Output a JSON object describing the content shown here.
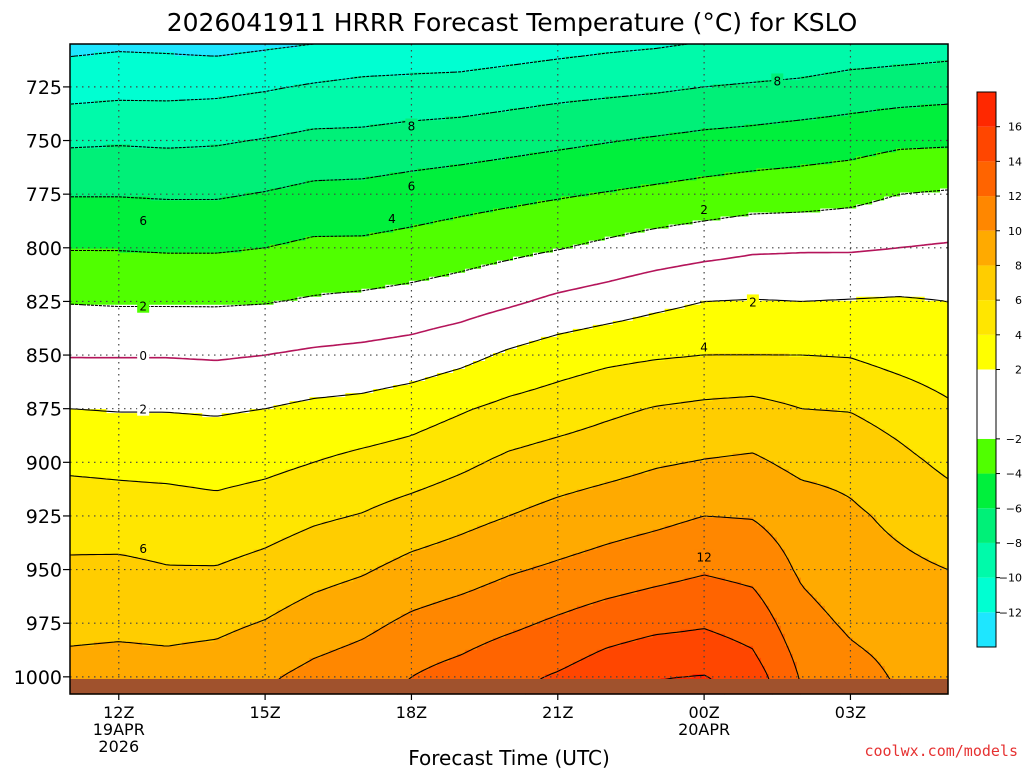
{
  "chart_data": {
    "type": "filled-contour",
    "title": "2026041911 HRRR Forecast Temperature (°C) for KSLO",
    "xlabel": "Forecast Time (UTC)",
    "credit": "coolwx.com/models",
    "x_ticks": [
      {
        "t": 0,
        "lines": [
          "12Z",
          "19APR",
          "2026"
        ]
      },
      {
        "t": 3,
        "lines": [
          "15Z"
        ]
      },
      {
        "t": 6,
        "lines": [
          "18Z"
        ]
      },
      {
        "t": 9,
        "lines": [
          "21Z"
        ]
      },
      {
        "t": 12,
        "lines": [
          "00Z",
          "20APR"
        ]
      },
      {
        "t": 15,
        "lines": [
          "03Z"
        ]
      }
    ],
    "x_range_hours": [
      -1,
      17
    ],
    "y_range_hPa": [
      1008,
      705
    ],
    "y_ticks": [
      725,
      750,
      775,
      800,
      825,
      850,
      875,
      900,
      925,
      950,
      975,
      1000
    ],
    "surface_pressure_hPa": 1001,
    "colorbar": {
      "ticks": [
        -12,
        -10,
        -8,
        -6,
        -4,
        -2,
        2,
        4,
        6,
        8,
        10,
        12,
        14,
        16
      ],
      "bands": [
        {
          "from": -14,
          "to": -12,
          "color": "#1ee6ff"
        },
        {
          "from": -12,
          "to": -10,
          "color": "#00ffd2"
        },
        {
          "from": -10,
          "to": -8,
          "color": "#00faaa"
        },
        {
          "from": -8,
          "to": -6,
          "color": "#00f078"
        },
        {
          "from": -6,
          "to": -4,
          "color": "#00f03c"
        },
        {
          "from": -4,
          "to": -2,
          "color": "#50ff00"
        },
        {
          "from": -2,
          "to": 2,
          "color": "#ffffff"
        },
        {
          "from": 2,
          "to": 4,
          "color": "#ffff00"
        },
        {
          "from": 4,
          "to": 6,
          "color": "#ffe600"
        },
        {
          "from": 6,
          "to": 8,
          "color": "#ffcd00"
        },
        {
          "from": 8,
          "to": 10,
          "color": "#ffaa00"
        },
        {
          "from": 10,
          "to": 12,
          "color": "#ff8700"
        },
        {
          "from": 12,
          "to": 14,
          "color": "#ff6400"
        },
        {
          "from": 14,
          "to": 16,
          "color": "#ff4600"
        },
        {
          "from": 16,
          "to": 18,
          "color": "#ff2800"
        }
      ]
    },
    "profile_x_hours": [
      -1,
      0,
      1,
      2,
      3,
      4,
      5,
      6,
      7,
      8,
      9,
      10,
      11,
      12,
      13,
      14,
      15,
      16,
      17
    ],
    "temperature_profiles": {
      "pressure_levels_hPa": [
        1008,
        1000,
        990,
        975,
        950,
        925,
        900,
        875,
        850,
        825,
        800,
        775,
        750,
        725,
        705
      ],
      "celsius": [
        [
          9.0,
          8.7,
          8.2,
          7.5,
          6.3,
          5.2,
          3.6,
          2.0,
          -0.1,
          -2.1,
          -4.1,
          -6.1,
          -8.3,
          -10.8,
          -12.5
        ],
        [
          9.2,
          8.9,
          8.3,
          7.6,
          6.4,
          5.0,
          3.5,
          1.9,
          -0.1,
          -2.2,
          -4.1,
          -6.1,
          -8.2,
          -10.6,
          -12.3
        ],
        [
          9.0,
          8.7,
          8.2,
          7.5,
          6.1,
          4.9,
          3.4,
          1.9,
          -0.1,
          -2.2,
          -4.2,
          -6.2,
          -8.3,
          -10.6,
          -12.4
        ],
        [
          9.5,
          9.0,
          8.4,
          7.6,
          6.1,
          4.7,
          3.2,
          1.8,
          -0.2,
          -2.2,
          -4.2,
          -6.2,
          -8.2,
          -10.5,
          -12.6
        ],
        [
          10.0,
          9.7,
          9.0,
          8.1,
          6.6,
          5.1,
          3.5,
          2.0,
          0.0,
          -2.1,
          -4.0,
          -5.9,
          -7.9,
          -10.2,
          -12.3
        ],
        [
          10.9,
          10.6,
          9.9,
          8.9,
          7.3,
          5.7,
          4.0,
          2.4,
          0.3,
          -1.8,
          -3.6,
          -5.5,
          -7.5,
          -9.8,
          -12.0
        ],
        [
          11.5,
          11.2,
          10.5,
          9.5,
          7.8,
          6.1,
          4.5,
          2.6,
          0.5,
          -1.6,
          -3.6,
          -5.4,
          -7.5,
          -9.5,
          -11.6
        ],
        [
          12.3,
          12.0,
          11.4,
          10.4,
          8.6,
          6.8,
          4.9,
          3.1,
          0.8,
          -1.3,
          -3.3,
          -5.1,
          -7.2,
          -9.4,
          -11.4
        ],
        [
          13.0,
          12.8,
          12.0,
          11.0,
          9.1,
          7.4,
          5.6,
          3.8,
          1.4,
          -0.9,
          -2.9,
          -4.8,
          -7.0,
          -9.3,
          -11.3
        ],
        [
          13.8,
          13.5,
          12.8,
          11.6,
          9.8,
          8.0,
          6.4,
          4.5,
          2.3,
          -0.3,
          -2.5,
          -4.5,
          -6.7,
          -9.0,
          -11.0
        ],
        [
          14.6,
          14.2,
          13.4,
          12.3,
          10.3,
          8.6,
          6.9,
          5.0,
          3.0,
          0.4,
          -2.1,
          -4.2,
          -6.4,
          -8.7,
          -10.7
        ],
        [
          15.5,
          15.1,
          14.3,
          13.0,
          10.8,
          9.1,
          7.3,
          5.6,
          3.5,
          0.9,
          -1.6,
          -3.9,
          -6.1,
          -8.5,
          -10.4
        ],
        [
          16.3,
          15.9,
          14.9,
          13.5,
          11.3,
          9.5,
          7.8,
          6.1,
          3.8,
          1.5,
          -1.1,
          -3.6,
          -5.8,
          -8.3,
          -10.2
        ],
        [
          16.5,
          16.1,
          15.0,
          13.8,
          11.8,
          10.0,
          8.1,
          6.4,
          4.0,
          2.0,
          -0.7,
          -3.3,
          -5.5,
          -8.0,
          -9.9
        ],
        [
          15.4,
          15.0,
          14.2,
          13.2,
          11.4,
          9.9,
          8.3,
          6.6,
          4.0,
          2.1,
          -0.3,
          -3.0,
          -5.3,
          -7.8,
          -9.7
        ],
        [
          12.0,
          11.8,
          11.4,
          10.7,
          9.7,
          9.0,
          7.5,
          6.0,
          4.0,
          2.0,
          -0.2,
          -2.9,
          -5.0,
          -7.6,
          -9.5
        ],
        [
          10.9,
          10.7,
          10.3,
          9.7,
          8.8,
          8.3,
          7.4,
          5.9,
          3.9,
          2.1,
          -0.2,
          -2.6,
          -4.8,
          -7.2,
          -9.2
        ],
        [
          10.0,
          9.8,
          9.6,
          9.1,
          8.4,
          7.6,
          6.5,
          5.2,
          3.3,
          2.2,
          0.0,
          -2.0,
          -4.4,
          -7.0,
          -9.0
        ],
        [
          9.6,
          9.5,
          9.2,
          8.8,
          8.0,
          6.9,
          5.6,
          4.3,
          2.8,
          2.0,
          0.2,
          -1.8,
          -4.3,
          -6.8,
          -8.8
        ]
      ]
    },
    "contour_labels": [
      {
        "value": "2",
        "hour": 0.5,
        "hPa": 875
      },
      {
        "value": "0",
        "hour": 0.5,
        "hPa": 850
      },
      {
        "value": "2",
        "hour": 0.5,
        "hPa": 827
      },
      {
        "value": "6",
        "hour": 0.5,
        "hPa": 940
      },
      {
        "value": "6",
        "hour": 0.5,
        "hPa": 787
      },
      {
        "value": "4",
        "hour": 5.6,
        "hPa": 786
      },
      {
        "value": "6",
        "hour": 6,
        "hPa": 771
      },
      {
        "value": "8",
        "hour": 6,
        "hPa": 743
      },
      {
        "value": "2",
        "hour": 12,
        "hPa": 782
      },
      {
        "value": "4",
        "hour": 12,
        "hPa": 846
      },
      {
        "value": "12",
        "hour": 12,
        "hPa": 944
      },
      {
        "value": "2",
        "hour": 13,
        "hPa": 825
      },
      {
        "value": "8",
        "hour": 13.5,
        "hPa": 722
      }
    ]
  }
}
